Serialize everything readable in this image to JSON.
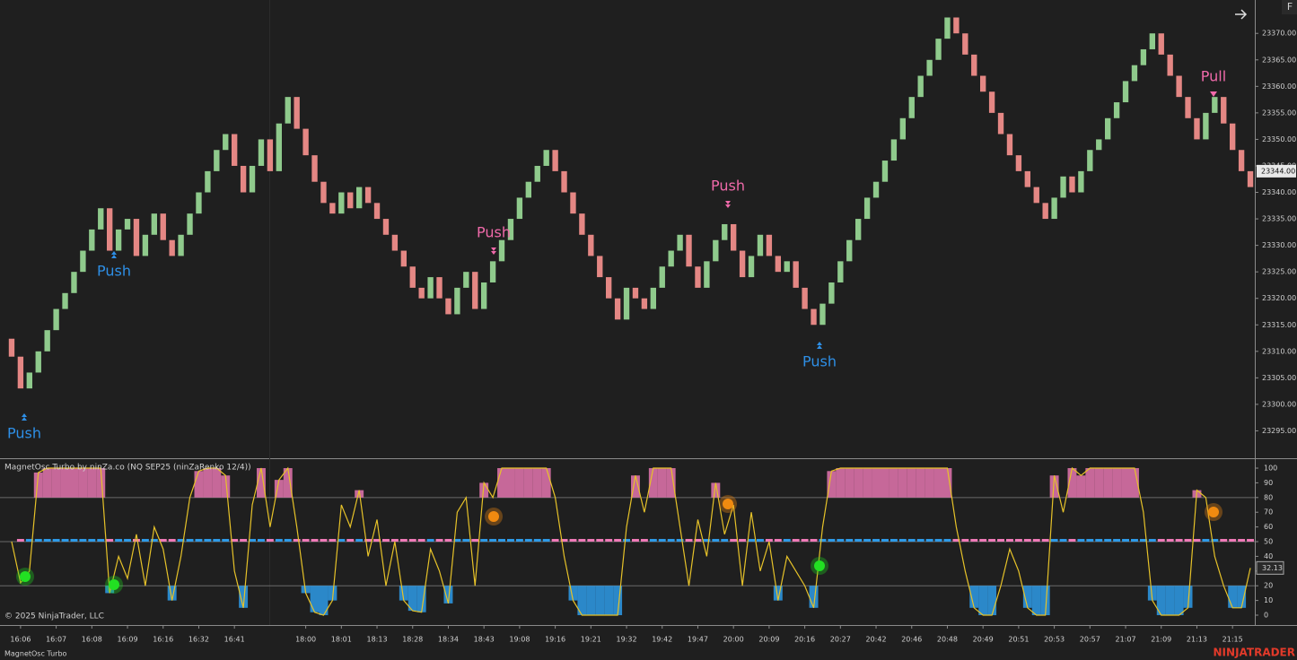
{
  "chart_data": [
    {
      "type": "renko",
      "categories": [
        null,
        "16:06",
        null,
        null,
        null,
        "16:07",
        null,
        null,
        null,
        "16:08",
        null,
        null,
        null,
        "16:09",
        null,
        null,
        null,
        "16:16",
        null,
        null,
        null,
        "16:32",
        null,
        null,
        null,
        "16:41",
        null,
        null,
        null,
        null,
        null,
        null,
        null,
        "18:00",
        null,
        null,
        null,
        "18:01",
        null,
        null,
        null,
        "18:13",
        null,
        null,
        null,
        "18:28",
        null,
        null,
        null,
        "18:34",
        null,
        null,
        null,
        "18:43",
        null,
        null,
        null,
        "19:08",
        null,
        null,
        null,
        "19:16",
        null,
        null,
        null,
        "19:21",
        null,
        null,
        null,
        "19:32",
        null,
        null,
        null,
        "19:42",
        null,
        null,
        null,
        "19:47",
        null,
        null,
        null,
        "20:00",
        null,
        null,
        null,
        "20:09",
        null,
        null,
        null,
        "20:16",
        null,
        null,
        null,
        "20:27",
        null,
        null,
        null,
        "20:42",
        null,
        null,
        null,
        "20:46",
        null,
        null,
        null,
        "20:48",
        null,
        null,
        null,
        "20:49",
        null,
        null,
        null,
        "20:51",
        null,
        null,
        null,
        "20:53",
        null,
        null,
        null,
        "20:57",
        null,
        null,
        null,
        "21:07",
        null,
        null,
        null,
        "21:09",
        null,
        null,
        null,
        "21:13",
        null,
        null,
        null,
        "21:15",
        null,
        null
      ],
      "close": [
        23309,
        23303,
        23306,
        23310,
        23314,
        23318,
        23321,
        23325,
        23329,
        23333,
        23337,
        23329,
        23333,
        23335,
        23328,
        23332,
        23336,
        23331,
        23328,
        23332,
        23336,
        23340,
        23344,
        23348,
        23351,
        23345,
        23340,
        23345,
        23350,
        23344,
        23353,
        23358,
        23352,
        23347,
        23342,
        23338,
        23336,
        23340,
        23337,
        23341,
        23338,
        23335,
        23332,
        23329,
        23326,
        23322,
        23320,
        23324,
        23320,
        23317,
        23322,
        23325,
        23318,
        23323,
        23327,
        23331,
        23335,
        23339,
        23342,
        23345,
        23348,
        23344,
        23340,
        23336,
        23332,
        23328,
        23324,
        23320,
        23316,
        23322,
        23320,
        23318,
        23322,
        23326,
        23329,
        23332,
        23326,
        23322,
        23327,
        23331,
        23334,
        23329,
        23324,
        23328,
        23332,
        23328,
        23325,
        23327,
        23322,
        23318,
        23315,
        23319,
        23323,
        23327,
        23331,
        23335,
        23339,
        23342,
        23346,
        23350,
        23354,
        23358,
        23362,
        23365,
        23369,
        23373,
        23370,
        23366,
        23362,
        23359,
        23355,
        23351,
        23347,
        23344,
        23341,
        23338,
        23335,
        23339,
        23343,
        23340,
        23344,
        23348,
        23350,
        23354,
        23357,
        23361,
        23364,
        23367,
        23370,
        23366,
        23362,
        23358,
        23354,
        23350,
        23355,
        23358,
        23353,
        23348,
        23344,
        23341
      ],
      "up_color": "#8fca8c",
      "down_color": "#e48784",
      "ylim": [
        23290,
        23376.3
      ],
      "yticks": [
        {
          "value": 23295,
          "label": "23295.00"
        },
        {
          "value": 23300,
          "label": "23300.00"
        },
        {
          "value": 23305,
          "label": "23305.00"
        },
        {
          "value": 23310,
          "label": "23310.00"
        },
        {
          "value": 23315,
          "label": "23315.00"
        },
        {
          "value": 23320,
          "label": "23320.00"
        },
        {
          "value": 23325,
          "label": "23325.00"
        },
        {
          "value": 23330,
          "label": "23330.00"
        },
        {
          "value": 23335,
          "label": "23335.00"
        },
        {
          "value": 23340,
          "label": "23340.00"
        },
        {
          "value": 23345,
          "label": "23345.00"
        },
        {
          "value": 23350,
          "label": "23350.00"
        },
        {
          "value": 23355,
          "label": "23355.00"
        },
        {
          "value": 23360,
          "label": "23360.00"
        },
        {
          "value": 23365,
          "label": "23365.00"
        },
        {
          "value": 23370,
          "label": "23370.00"
        }
      ],
      "last": {
        "value": 23344,
        "label": "23344.00"
      }
    },
    {
      "type": "line",
      "title": "MagnetOsc Turbo by ninZa.co (NQ SEP25 (ninZaRenko 12/4))",
      "values": [
        50,
        22,
        30,
        97,
        100,
        100,
        100,
        100,
        100,
        100,
        100,
        15,
        40,
        25,
        55,
        20,
        60,
        45,
        10,
        40,
        80,
        98,
        100,
        100,
        95,
        30,
        5,
        75,
        100,
        60,
        92,
        100,
        60,
        15,
        2,
        0,
        10,
        75,
        60,
        85,
        40,
        65,
        20,
        50,
        10,
        3,
        2,
        45,
        30,
        8,
        70,
        80,
        20,
        90,
        80,
        100,
        100,
        100,
        100,
        100,
        100,
        80,
        40,
        10,
        0,
        0,
        0,
        0,
        0,
        60,
        95,
        70,
        100,
        100,
        100,
        60,
        20,
        65,
        40,
        90,
        55,
        75,
        20,
        70,
        30,
        50,
        10,
        40,
        30,
        20,
        5,
        60,
        98,
        100,
        100,
        100,
        100,
        100,
        100,
        100,
        100,
        100,
        100,
        100,
        100,
        100,
        60,
        30,
        5,
        0,
        0,
        20,
        45,
        30,
        5,
        0,
        0,
        95,
        70,
        100,
        95,
        100,
        100,
        100,
        100,
        100,
        100,
        70,
        10,
        0,
        0,
        0,
        5,
        85,
        80,
        40,
        20,
        5,
        5,
        32.13
      ],
      "color": "#e6c229",
      "upper_color": "#f07ab8",
      "lower_color": "#2e9be8",
      "levels": [
        20,
        50,
        80
      ],
      "ylim": [
        -6.7,
        105.5
      ],
      "yticks": [
        0,
        10,
        20,
        30,
        40,
        50,
        60,
        70,
        80,
        90,
        100
      ],
      "last": 32.13
    }
  ],
  "annotations": [
    "Push",
    "Push",
    "Push",
    "Push",
    "Push",
    "Pull"
  ],
  "copyright": "© 2025 NinjaTrader, LLC",
  "tab_label": "MagnetOsc Turbo",
  "logo": "NINJATRADER",
  "corner_button": "F"
}
